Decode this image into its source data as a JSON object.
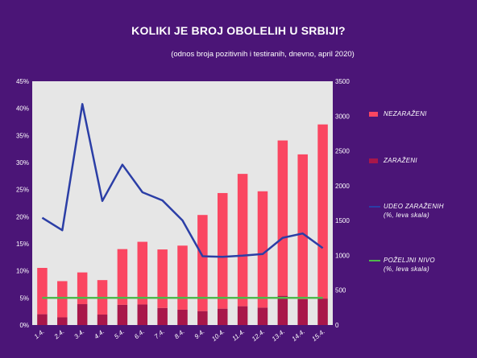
{
  "title": "KOLIKI JE BROJ OBOLELIH U SRBIJI?",
  "subtitle": "(odnos broja pozitivnih i testiranih, dnevno, april 2020)",
  "legend": [
    {
      "label": "NEZARAŽENI",
      "sub": "",
      "color": "#fa4661",
      "kind": "bar"
    },
    {
      "label": "ZARAŽENI",
      "sub": "",
      "color": "#a8174a",
      "kind": "bar"
    },
    {
      "label": "UDEO ZARAŽENIH",
      "sub": "(%, leva skala)",
      "color": "#2b3ea6",
      "kind": "line"
    },
    {
      "label": "POŽELJNI NIVO",
      "sub": "(%, leva skala)",
      "color": "#4fb84c",
      "kind": "line"
    }
  ],
  "chart_data": {
    "type": "bar",
    "categories": [
      "1.4.",
      "2.4.",
      "3.4.",
      "4.4.",
      "5.4.",
      "6.4.",
      "7.4.",
      "8.4.",
      "9.4.",
      "10.4.",
      "11.4.",
      "12.4.",
      "13.4.",
      "14.4.",
      "15.4."
    ],
    "left_axis": {
      "ylim": [
        0,
        45
      ],
      "ticks": [
        "0%",
        "5%",
        "10%",
        "15%",
        "20%",
        "25%",
        "30%",
        "35%",
        "40%",
        "45%"
      ]
    },
    "right_axis": {
      "ylim": [
        0,
        3500
      ],
      "ticks": [
        "0",
        "500",
        "1000",
        "1500",
        "2000",
        "2500",
        "3000",
        "3500"
      ]
    },
    "series": [
      {
        "name": "NEZARAŽENI",
        "kind": "stacked-bar",
        "axis": "right",
        "color": "#fa4661",
        "values": [
          665,
          520,
          455,
          495,
          800,
          900,
          840,
          920,
          1380,
          1660,
          1900,
          1670,
          2230,
          2080,
          2500
        ]
      },
      {
        "name": "ZARAŽENI",
        "kind": "stacked-bar",
        "axis": "right",
        "color": "#a8174a",
        "values": [
          155,
          110,
          300,
          150,
          290,
          295,
          245,
          220,
          200,
          235,
          270,
          250,
          420,
          370,
          380
        ]
      },
      {
        "name": "UDEO ZARAŽENIH",
        "kind": "line",
        "axis": "left",
        "color": "#2b3ea6",
        "values": [
          19.8,
          17.5,
          40.8,
          22.9,
          29.6,
          24.5,
          23.0,
          19.3,
          12.7,
          12.6,
          12.8,
          13.1,
          16.1,
          16.9,
          14.2
        ]
      },
      {
        "name": "POŽELJNI NIVO",
        "kind": "line",
        "axis": "left",
        "color": "#4fb84c",
        "values": [
          5,
          5,
          5,
          5,
          5,
          5,
          5,
          5,
          5,
          5,
          5,
          5,
          5,
          5,
          5
        ]
      }
    ],
    "grid": false,
    "plot_background": "#e6e6e6",
    "legend_position": "right"
  }
}
